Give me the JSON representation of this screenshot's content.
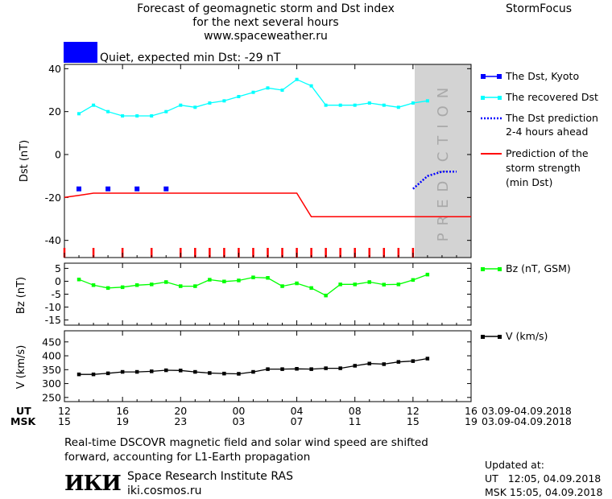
{
  "header": {
    "title_lines": [
      "Forecast of geomagnetic storm and Dst index",
      "for the next several hours",
      "www.spaceweather.ru"
    ],
    "brand": "StormFocus",
    "status_color": "#0000ff",
    "status_text": "Quiet, expected min Dst: -29 nT"
  },
  "legend": {
    "dst_kyoto": "The Dst, Kyoto",
    "recovered": "The recovered Dst",
    "prediction_line1": "The Dst prediction",
    "prediction_line2": "2-4 hours ahead",
    "storm_line1": "Prediction of the",
    "storm_line2": "storm strength",
    "storm_line3": "(min Dst)",
    "bz": "Bz (nT, GSM)",
    "v": "V (km/s)"
  },
  "prediction_label": "PREDICTION",
  "time_axis": {
    "ut_label": "UT",
    "msk_label": "MSK",
    "ut_ticks": [
      "12",
      "16",
      "20",
      "00",
      "04",
      "08",
      "12",
      "16"
    ],
    "msk_ticks": [
      "15",
      "19",
      "23",
      "03",
      "07",
      "11",
      "15",
      "19"
    ],
    "ut_dates": "03.09-04.09.2018",
    "msk_dates": "03.09-04.09.2018"
  },
  "footer": {
    "note_line1": "Real-time DSCOVR magnetic field and solar wind speed are shifted",
    "note_line2": "forward, accounting for L1-Earth propagation",
    "logo": "ИКИ",
    "institute": "Space Research Institute RAS",
    "website": "iki.cosmos.ru",
    "updated_label": "Updated at:",
    "updated_ut": "UT   12:05, 04.09.2018",
    "updated_msk": "MSK 15:05, 04.09.2018"
  },
  "chart_data": [
    {
      "type": "line",
      "ylabel": "Dst (nT)",
      "ylim": [
        -48,
        42
      ],
      "yticks": [
        40,
        20,
        0,
        -20,
        -40
      ],
      "x_unit": "hours since 12 UT 03.09.2018",
      "xlim": [
        12,
        40
      ],
      "prediction_region": [
        36,
        40
      ],
      "colors": {
        "kyoto": "#0000ff",
        "recovered": "#00ffff",
        "prediction": "#0000ff",
        "storm": "#ff0000",
        "ticks": "#ff0000",
        "shade": "#d3d3d3"
      },
      "series": [
        {
          "name": "The Dst, Kyoto",
          "x": [
            13,
            15,
            17,
            19
          ],
          "values": [
            -16,
            -16,
            -16,
            -16
          ]
        },
        {
          "name": "The recovered Dst",
          "x": [
            13,
            14,
            15,
            16,
            17,
            18,
            19,
            20,
            21,
            22,
            23,
            24,
            25,
            26,
            27,
            28,
            29,
            30,
            31,
            32,
            33,
            34,
            35,
            36,
            37
          ],
          "values": [
            19,
            23,
            20,
            18,
            18,
            18,
            20,
            23,
            22,
            24,
            25,
            27,
            29,
            31,
            30,
            35,
            32,
            23,
            23,
            23,
            24,
            23,
            22,
            24,
            25
          ]
        },
        {
          "name": "The Dst prediction 2-4 hours ahead",
          "x": [
            36,
            37,
            38,
            39
          ],
          "values": [
            -16,
            -10,
            -8,
            -8
          ]
        },
        {
          "name": "Prediction of the storm strength (min Dst)",
          "x": [
            12,
            13,
            14,
            28,
            29,
            40
          ],
          "values": [
            -20,
            -19,
            -18,
            -18,
            -29,
            -29
          ]
        }
      ],
      "marker_ticks_x": [
        12,
        14,
        16,
        18,
        20,
        21,
        22,
        23,
        24,
        25,
        26,
        27,
        28,
        29,
        30,
        31,
        32,
        33,
        34,
        35,
        36
      ]
    },
    {
      "type": "line",
      "ylabel": "Bz (nT)",
      "ylim": [
        -17,
        7
      ],
      "yticks": [
        5,
        0,
        -5,
        -10,
        -15
      ],
      "colors": {
        "line": "#00ff00"
      },
      "series": [
        {
          "name": "Bz (nT, GSM)",
          "x": [
            13,
            14,
            15,
            16,
            17,
            18,
            19,
            20,
            21,
            22,
            23,
            24,
            25,
            26,
            27,
            28,
            29,
            30,
            31,
            32,
            33,
            34,
            35,
            36,
            37
          ],
          "values": [
            0.7,
            -1.5,
            -2.6,
            -2.3,
            -1.5,
            -1.2,
            -0.3,
            -1.9,
            -1.9,
            0.6,
            -0.1,
            0.3,
            1.5,
            1.3,
            -1.9,
            -0.8,
            -2.6,
            -5.5,
            -1.2,
            -1.2,
            -0.3,
            -1.3,
            -1.2,
            0.5,
            2.6
          ]
        }
      ]
    },
    {
      "type": "line",
      "ylabel": "V (km/s)",
      "ylim": [
        235,
        490
      ],
      "yticks": [
        450,
        400,
        350,
        300,
        250
      ],
      "colors": {
        "line": "#000000"
      },
      "series": [
        {
          "name": "V (km/s)",
          "x": [
            13,
            14,
            15,
            16,
            17,
            18,
            19,
            20,
            21,
            22,
            23,
            24,
            25,
            26,
            27,
            28,
            29,
            30,
            31,
            32,
            33,
            34,
            35,
            36,
            37
          ],
          "values": [
            333,
            333,
            337,
            342,
            342,
            344,
            348,
            347,
            342,
            338,
            336,
            335,
            342,
            352,
            352,
            353,
            352,
            355,
            355,
            364,
            372,
            370,
            378,
            381,
            390
          ]
        }
      ]
    }
  ]
}
